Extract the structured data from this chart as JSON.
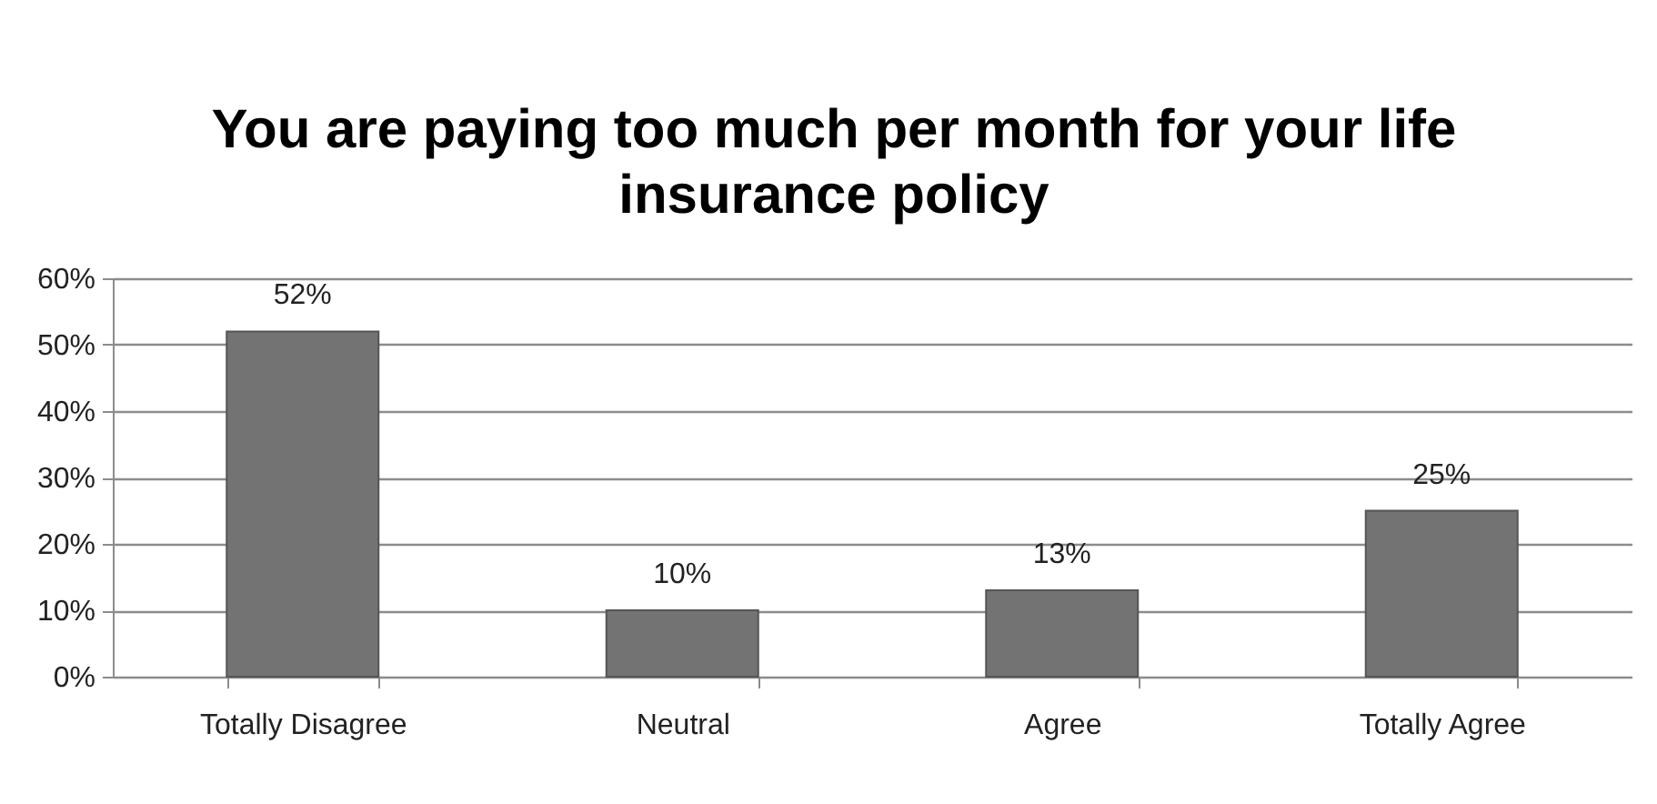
{
  "chart_data": {
    "type": "bar",
    "title": "You are paying too much per month for your life insurance policy",
    "categories": [
      "Totally Disagree",
      "Neutral",
      "Agree",
      "Totally Agree"
    ],
    "values": [
      52,
      10,
      13,
      25
    ],
    "value_labels": [
      "52%",
      "10%",
      "13%",
      "25%"
    ],
    "color": "#737373",
    "ylim": [
      0,
      60
    ],
    "yticks": [
      {
        "value": 0,
        "label": "0%"
      },
      {
        "value": 10,
        "label": "10%"
      },
      {
        "value": 20,
        "label": "20%"
      },
      {
        "value": 30,
        "label": "30%"
      },
      {
        "value": 40,
        "label": "40%"
      },
      {
        "value": 50,
        "label": "50%"
      },
      {
        "value": 60,
        "label": "60%"
      }
    ],
    "grid": "y"
  }
}
